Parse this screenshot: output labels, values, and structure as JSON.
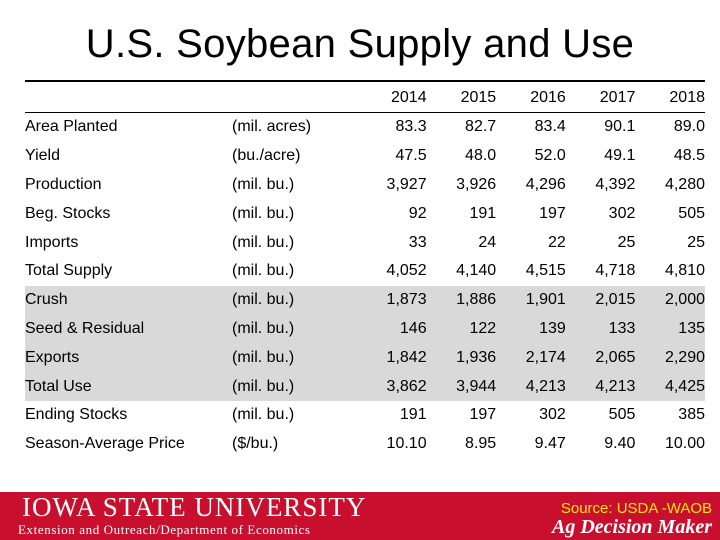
{
  "title": "U.S. Soybean Supply and Use",
  "table": {
    "years": [
      "2014",
      "2015",
      "2016",
      "2017",
      "2018"
    ],
    "rows": [
      {
        "label": "Area Planted",
        "unit": "(mil. acres)",
        "values": [
          "83.3",
          "82.7",
          "83.4",
          "90.1",
          "89.0"
        ],
        "shaded": false
      },
      {
        "label": "Yield",
        "unit": "(bu./acre)",
        "values": [
          "47.5",
          "48.0",
          "52.0",
          "49.1",
          "48.5"
        ],
        "shaded": false
      },
      {
        "label": "Production",
        "unit": "(mil. bu.)",
        "values": [
          "3,927",
          "3,926",
          "4,296",
          "4,392",
          "4,280"
        ],
        "shaded": false
      },
      {
        "label": "Beg. Stocks",
        "unit": "(mil. bu.)",
        "values": [
          "92",
          "191",
          "197",
          "302",
          "505"
        ],
        "shaded": false
      },
      {
        "label": "Imports",
        "unit": "(mil. bu.)",
        "values": [
          "33",
          "24",
          "22",
          "25",
          "25"
        ],
        "shaded": false
      },
      {
        "label": "Total Supply",
        "unit": "(mil. bu.)",
        "values": [
          "4,052",
          "4,140",
          "4,515",
          "4,718",
          "4,810"
        ],
        "shaded": false
      },
      {
        "label": "Crush",
        "unit": "(mil. bu.)",
        "values": [
          "1,873",
          "1,886",
          "1,901",
          "2,015",
          "2,000"
        ],
        "shaded": true
      },
      {
        "label": "Seed & Residual",
        "unit": "(mil. bu.)",
        "values": [
          "146",
          "122",
          "139",
          "133",
          "135"
        ],
        "shaded": true
      },
      {
        "label": "Exports",
        "unit": "(mil. bu.)",
        "values": [
          "1,842",
          "1,936",
          "2,174",
          "2,065",
          "2,290"
        ],
        "shaded": true
      },
      {
        "label": "Total Use",
        "unit": "(mil. bu.)",
        "values": [
          "3,862",
          "3,944",
          "4,213",
          "4,213",
          "4,425"
        ],
        "shaded": true
      },
      {
        "label": "Ending Stocks",
        "unit": "(mil. bu.)",
        "values": [
          "191",
          "197",
          "302",
          "505",
          "385"
        ],
        "shaded": false
      },
      {
        "label": "Season-Average Price",
        "unit": "($/bu.)",
        "values": [
          "10.10",
          "8.95",
          "9.47",
          "9.40",
          "10.00"
        ],
        "shaded": false
      }
    ]
  },
  "footer": {
    "university": "IOWA STATE UNIVERSITY",
    "department": "Extension and Outreach/Department of Economics",
    "source": "Source: USDA -WAOB",
    "brand": "Ag Decision Maker"
  },
  "colors": {
    "footer_bg": "#c8102e",
    "shaded_rows": "#d9d9d9",
    "source_text": "#ffe600"
  }
}
